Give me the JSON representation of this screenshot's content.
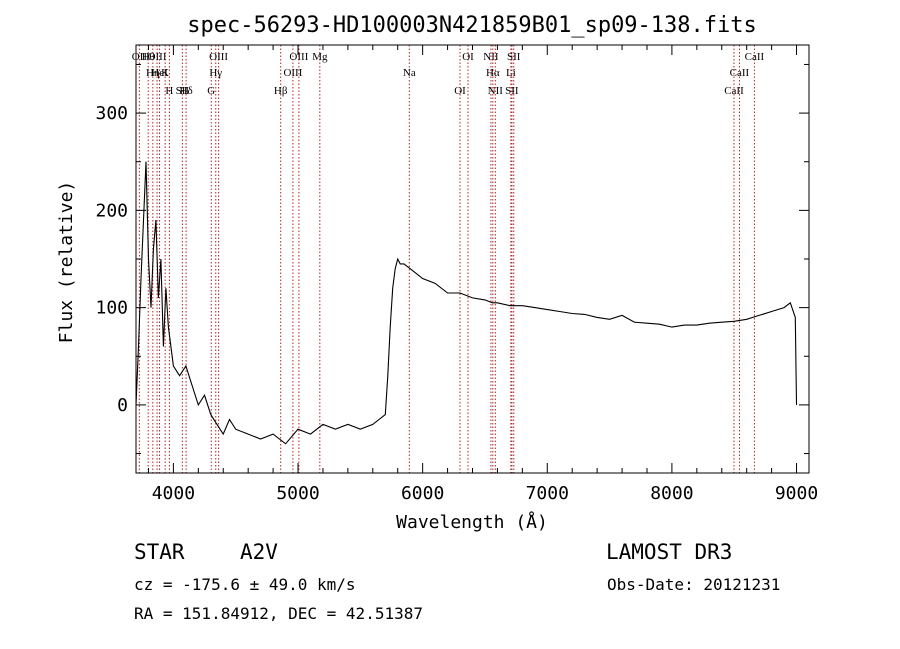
{
  "chart_data": {
    "type": "line",
    "title": "spec-56293-HD100003N421859B01_sp09-138.fits",
    "xlabel": "Wavelength (Å)",
    "ylabel": "Flux (relative)",
    "xlim": [
      3700,
      9100
    ],
    "ylim": [
      -70,
      370
    ],
    "xticks": [
      4000,
      5000,
      6000,
      7000,
      8000,
      9000
    ],
    "yticks": [
      0,
      100,
      200,
      300
    ],
    "grid": false,
    "line_color": "#000000",
    "marker_color": "#b22222",
    "series": [
      {
        "name": "flux",
        "x": [
          3700,
          3720,
          3740,
          3760,
          3780,
          3800,
          3820,
          3840,
          3860,
          3880,
          3900,
          3920,
          3940,
          3960,
          3980,
          4000,
          4050,
          4100,
          4150,
          4200,
          4250,
          4300,
          4350,
          4400,
          4450,
          4500,
          4600,
          4700,
          4800,
          4900,
          5000,
          5100,
          5200,
          5300,
          5400,
          5500,
          5600,
          5650,
          5700,
          5720,
          5740,
          5760,
          5780,
          5800,
          5820,
          5850,
          5900,
          6000,
          6100,
          6200,
          6300,
          6400,
          6500,
          6560,
          6600,
          6700,
          6800,
          6900,
          7000,
          7100,
          7200,
          7300,
          7400,
          7500,
          7600,
          7700,
          7800,
          7900,
          8000,
          8100,
          8200,
          8300,
          8400,
          8500,
          8600,
          8700,
          8800,
          8900,
          8950,
          8990,
          9000
        ],
        "y": [
          0,
          60,
          130,
          190,
          250,
          150,
          100,
          160,
          190,
          110,
          150,
          60,
          120,
          80,
          60,
          40,
          30,
          40,
          20,
          0,
          10,
          -10,
          -20,
          -30,
          -15,
          -25,
          -30,
          -35,
          -30,
          -40,
          -25,
          -30,
          -20,
          -25,
          -20,
          -25,
          -20,
          -15,
          -10,
          30,
          80,
          120,
          140,
          150,
          145,
          145,
          140,
          130,
          125,
          115,
          115,
          110,
          108,
          105,
          105,
          102,
          102,
          100,
          98,
          96,
          94,
          93,
          90,
          88,
          92,
          85,
          84,
          83,
          80,
          82,
          82,
          84,
          85,
          86,
          88,
          92,
          96,
          100,
          105,
          90,
          0
        ]
      }
    ],
    "lines": [
      {
        "label": "Hθ",
        "x": 3798
      },
      {
        "label": "K",
        "x": 3934
      },
      {
        "label": "Hδ",
        "x": 4102
      },
      {
        "label": "OII",
        "x": 3727
      },
      {
        "label": "HeI",
        "x": 3889
      },
      {
        "label": "SII",
        "x": 4072
      },
      {
        "label": "OIII",
        "x": 3869
      },
      {
        "label": "Hη",
        "x": 3835
      },
      {
        "label": "H",
        "x": 3968
      },
      {
        "label": "OIII",
        "x": 4363
      },
      {
        "label": "Hγ",
        "x": 4340
      },
      {
        "label": "G",
        "x": 4304
      },
      {
        "label": "OIII",
        "x": 5007
      },
      {
        "label": "OIII",
        "x": 4959
      },
      {
        "label": "Hβ",
        "x": 4861
      },
      {
        "label": "Mg",
        "x": 5175
      },
      {
        "label": "Na",
        "x": 5893
      },
      {
        "label": "OI",
        "x": 6300
      },
      {
        "label": "OI",
        "x": 6364
      },
      {
        "label": "Hα",
        "x": 6563
      },
      {
        "label": "SII",
        "x": 6716
      },
      {
        "label": "NII",
        "x": 6548
      },
      {
        "label": "Li",
        "x": 6708
      },
      {
        "label": "NII",
        "x": 6583
      },
      {
        "label": "SII",
        "x": 6731
      },
      {
        "label": "CaII",
        "x": 8542
      },
      {
        "label": "CaII",
        "x": 8498
      },
      {
        "label": "CaII",
        "x": 8662
      }
    ]
  },
  "info": {
    "object_class": "STAR",
    "subclass": "A2V",
    "survey": "LAMOST DR3",
    "cz_text": "cz = -175.6 ± 49.0 km/s",
    "obs_date": "Obs-Date: 20121231",
    "coords": "RA = 151.84912, DEC =  42.51387"
  }
}
